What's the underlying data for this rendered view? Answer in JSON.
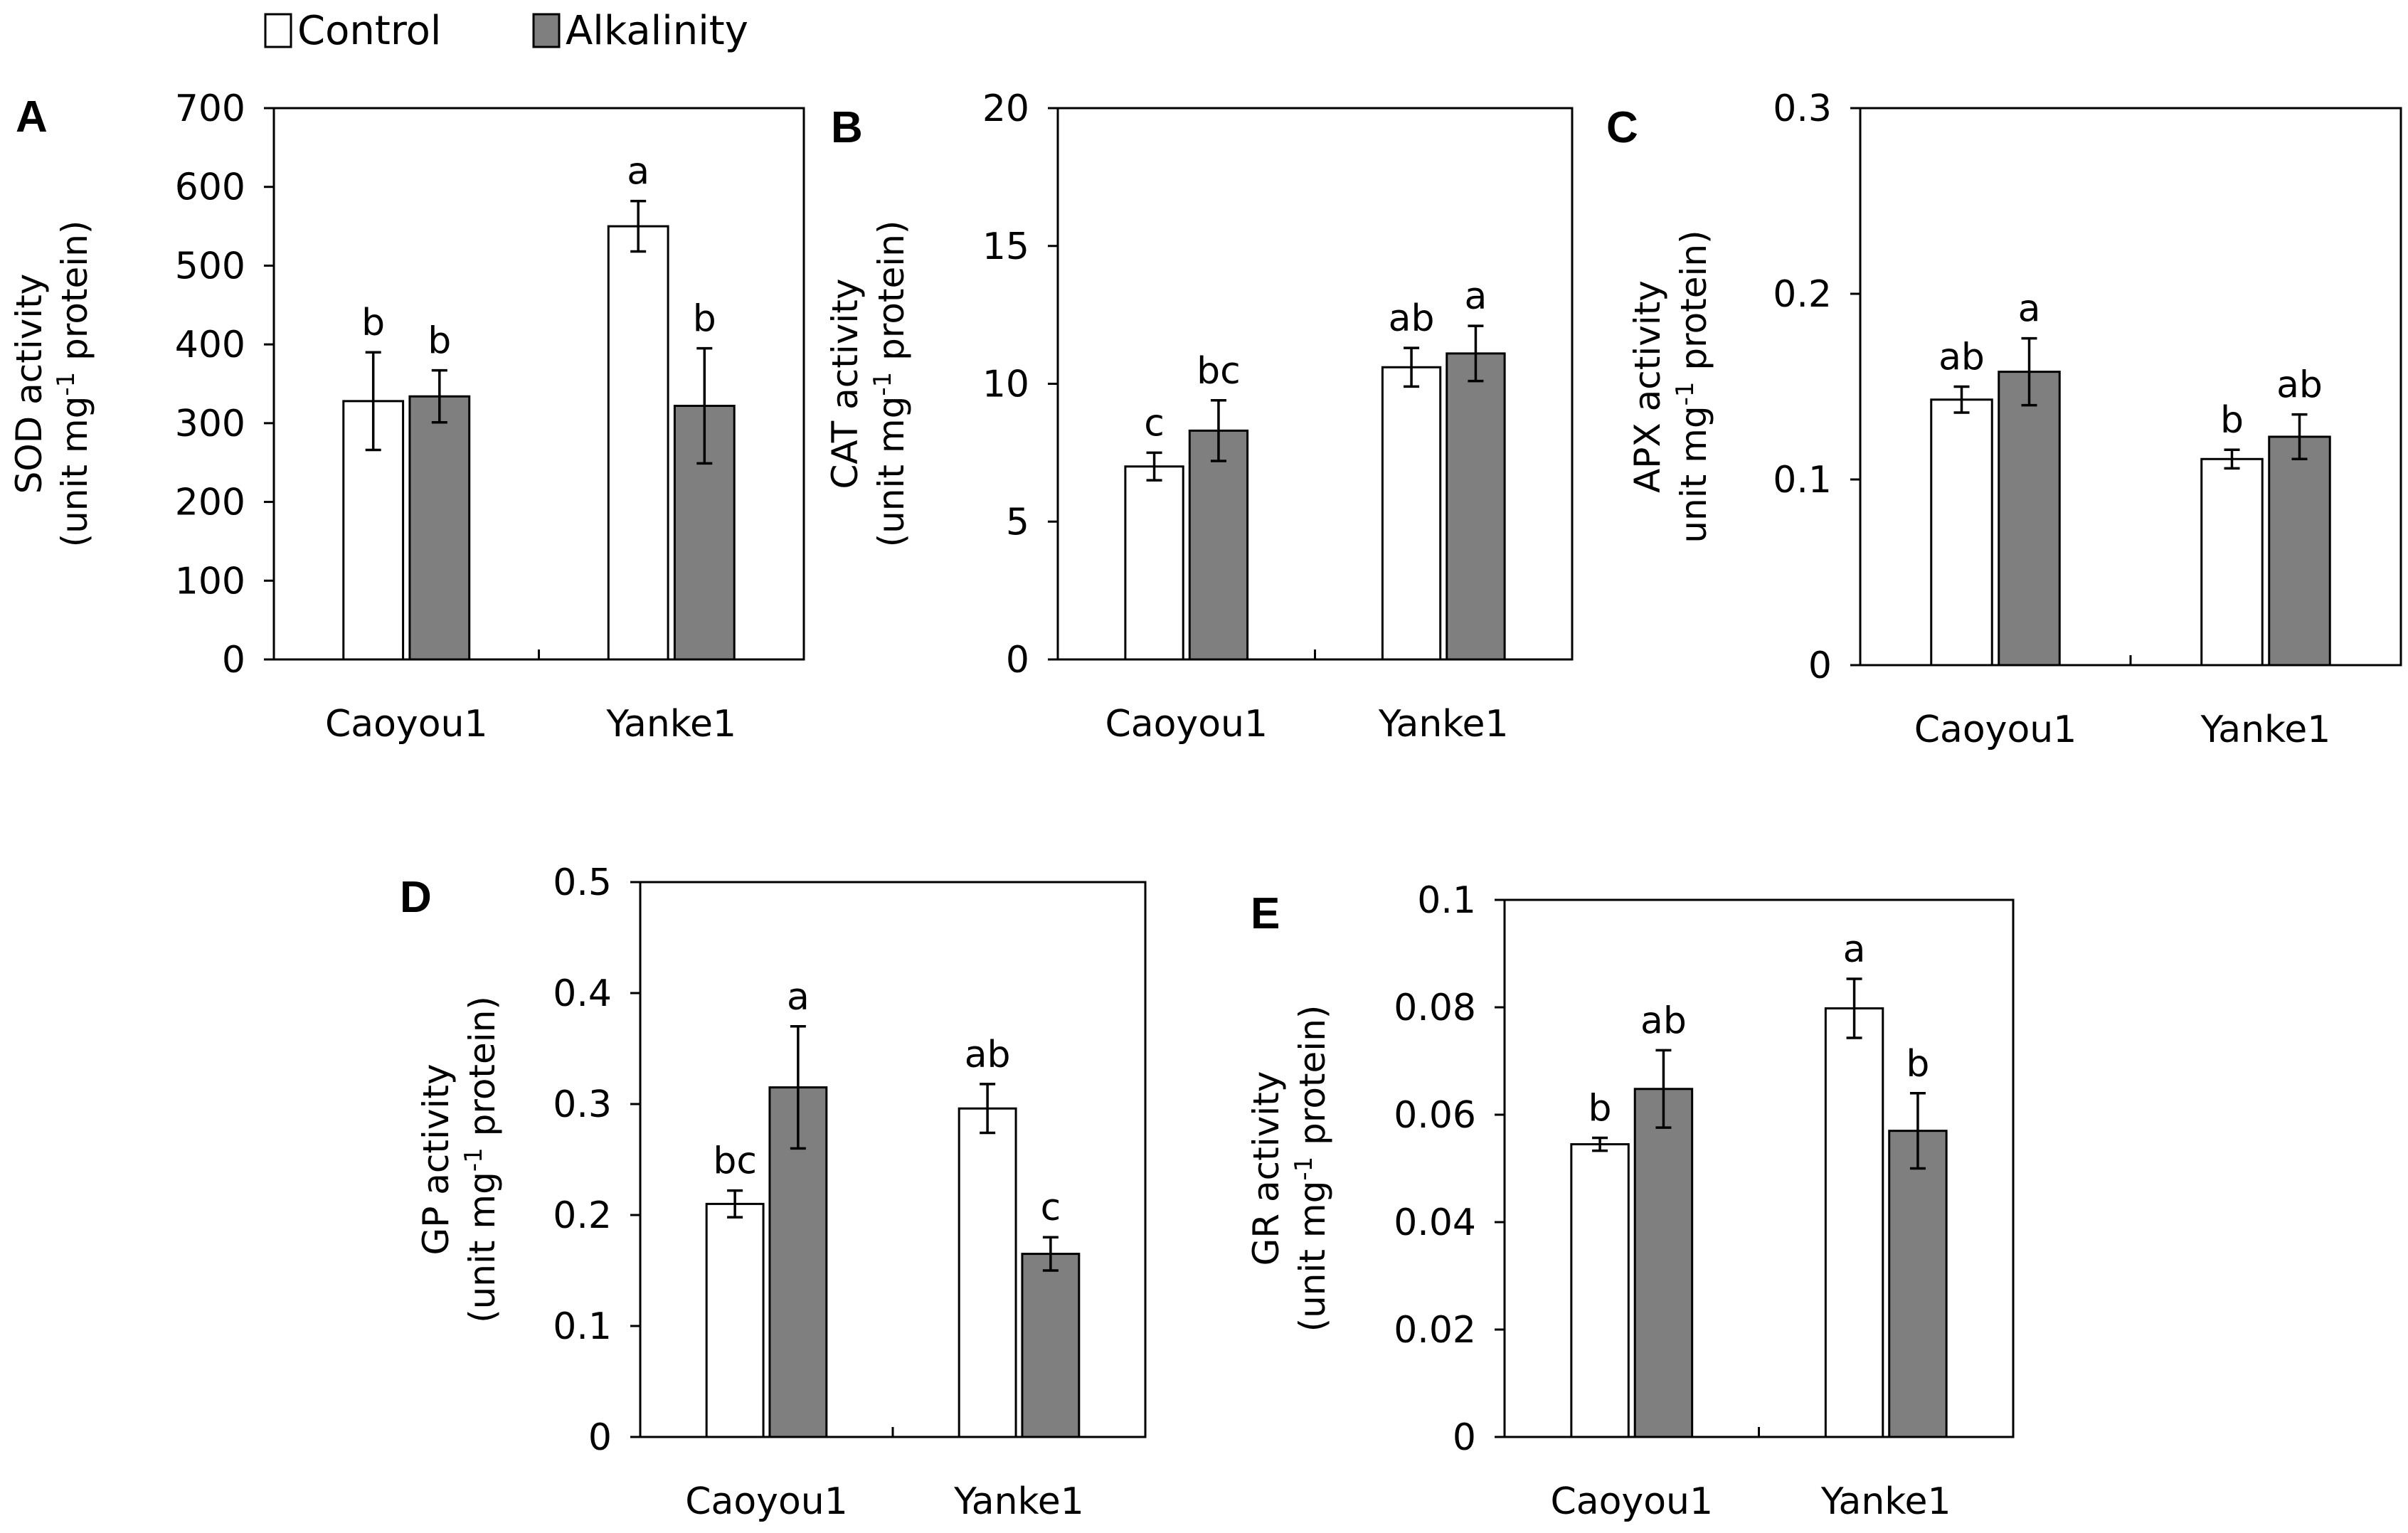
{
  "legend": [
    {
      "label": "Control",
      "color": "#ffffff"
    },
    {
      "label": "Alkalinity",
      "color": "#7f7f7f"
    }
  ],
  "chart_data": [
    {
      "panel": "A",
      "type": "bar",
      "categories": [
        "Caoyou1",
        "Yanke1"
      ],
      "ylabel_line1": "SOD activity",
      "ylabel_line2": [
        "(unit mg",
        "-1",
        " protein)"
      ],
      "ylim": [
        0,
        700
      ],
      "yticks": [
        0,
        100,
        200,
        300,
        400,
        500,
        600,
        700
      ],
      "ytick_labels": [
        "0",
        "100",
        "200",
        "300",
        "400",
        "500",
        "600",
        "700"
      ],
      "series": [
        {
          "name": "Control",
          "values": [
            328,
            550
          ],
          "errors": [
            62,
            32
          ],
          "letters": [
            "b",
            "a"
          ]
        },
        {
          "name": "Alkalinity",
          "values": [
            334,
            322
          ],
          "errors": [
            33,
            73
          ],
          "letters": [
            "b",
            "b"
          ]
        }
      ]
    },
    {
      "panel": "B",
      "type": "bar",
      "categories": [
        "Caoyou1",
        "Yanke1"
      ],
      "ylabel_line1": "CAT activity",
      "ylabel_line2": [
        "(unit mg",
        "-1",
        " protein)"
      ],
      "ylim": [
        0,
        20
      ],
      "yticks": [
        0,
        5,
        10,
        15,
        20
      ],
      "ytick_labels": [
        "0",
        "5",
        "10",
        "15",
        "20"
      ],
      "series": [
        {
          "name": "Control",
          "values": [
            7.0,
            10.6
          ],
          "errors": [
            0.5,
            0.7
          ],
          "letters": [
            "c",
            "ab"
          ]
        },
        {
          "name": "Alkalinity",
          "values": [
            8.3,
            11.1
          ],
          "errors": [
            1.1,
            1.0
          ],
          "letters": [
            "bc",
            "a"
          ]
        }
      ]
    },
    {
      "panel": "C",
      "type": "bar",
      "categories": [
        "Caoyou1",
        "Yanke1"
      ],
      "ylabel_line1": "APX activity",
      "ylabel_line2": [
        "unit mg",
        "-1",
        " protein)"
      ],
      "ylim": [
        0,
        0.3
      ],
      "yticks": [
        0,
        0.1,
        0.2,
        0.3
      ],
      "ytick_labels": [
        "0",
        "0.1",
        "0.2",
        "0.3"
      ],
      "series": [
        {
          "name": "Control",
          "values": [
            0.143,
            0.111
          ],
          "errors": [
            0.007,
            0.005
          ],
          "letters": [
            "ab",
            "b"
          ]
        },
        {
          "name": "Alkalinity",
          "values": [
            0.158,
            0.123
          ],
          "errors": [
            0.018,
            0.012
          ],
          "letters": [
            "a",
            "ab"
          ]
        }
      ]
    },
    {
      "panel": "D",
      "type": "bar",
      "categories": [
        "Caoyou1",
        "Yanke1"
      ],
      "ylabel_line1": "GP activity",
      "ylabel_line2": [
        "(unit mg",
        "-1",
        " protein)"
      ],
      "ylim": [
        0,
        0.5
      ],
      "yticks": [
        0,
        0.1,
        0.2,
        0.3,
        0.4,
        0.5
      ],
      "ytick_labels": [
        "0",
        "0.1",
        "0.2",
        "0.3",
        "0.4",
        "0.5"
      ],
      "series": [
        {
          "name": "Control",
          "values": [
            0.21,
            0.296
          ],
          "errors": [
            0.012,
            0.022
          ],
          "letters": [
            "bc",
            "ab"
          ]
        },
        {
          "name": "Alkalinity",
          "values": [
            0.315,
            0.165
          ],
          "errors": [
            0.055,
            0.015
          ],
          "letters": [
            "a",
            "c"
          ]
        }
      ]
    },
    {
      "panel": "E",
      "type": "bar",
      "categories": [
        "Caoyou1",
        "Yanke1"
      ],
      "ylabel_line1": "GR activity",
      "ylabel_line2": [
        "(unit  mg",
        "-1",
        " protein)"
      ],
      "ylim": [
        0,
        0.1
      ],
      "yticks": [
        0,
        0.02,
        0.04,
        0.06,
        0.08,
        0.1
      ],
      "ytick_labels": [
        "0",
        "0.02",
        "0.04",
        "0.06",
        "0.08",
        "0.1"
      ],
      "series": [
        {
          "name": "Control",
          "values": [
            0.0545,
            0.0798
          ],
          "errors": [
            0.0012,
            0.0055
          ],
          "letters": [
            "b",
            "a"
          ]
        },
        {
          "name": "Alkalinity",
          "values": [
            0.0648,
            0.057
          ],
          "errors": [
            0.0072,
            0.007
          ],
          "letters": [
            "ab",
            "b"
          ]
        }
      ]
    }
  ]
}
